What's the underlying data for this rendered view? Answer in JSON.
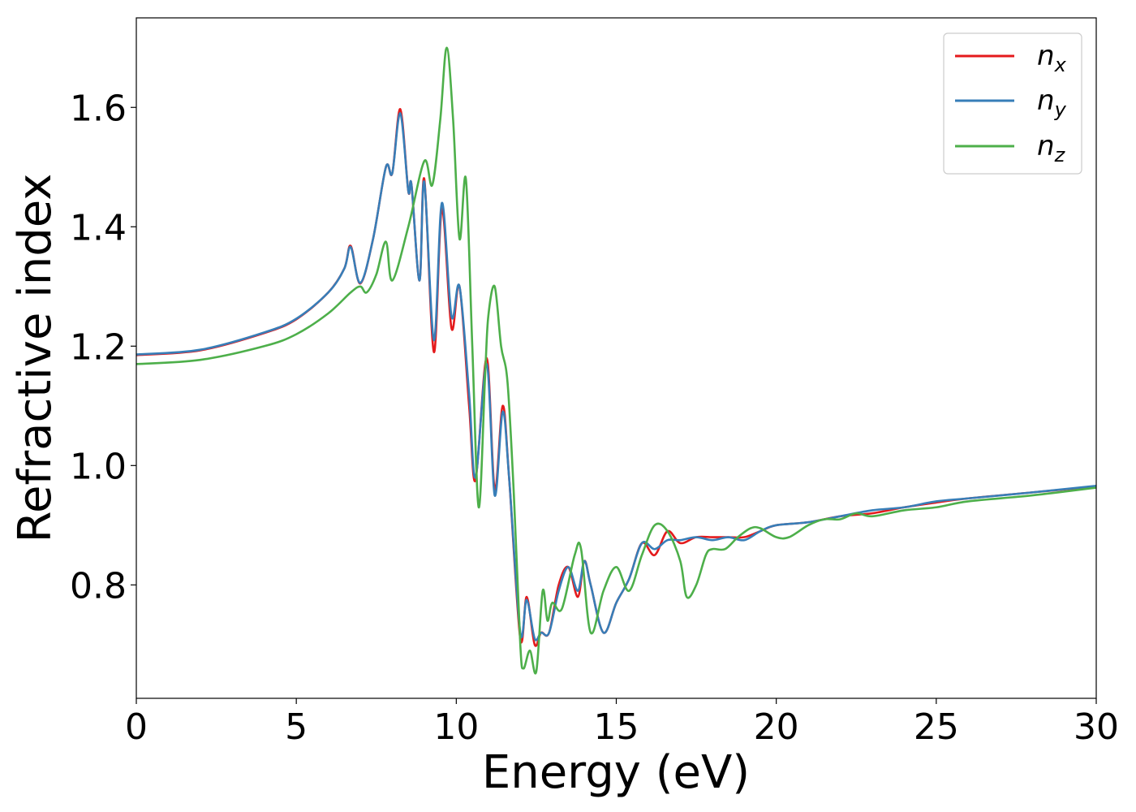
{
  "chart_data": {
    "type": "line",
    "title": "",
    "xlabel": "Energy (eV)",
    "ylabel": "Refractive index",
    "xlim": [
      0,
      30
    ],
    "ylim": [
      0.61,
      1.75
    ],
    "xticks": [
      0,
      5,
      10,
      15,
      20,
      25,
      30
    ],
    "xtick_labels": [
      "0",
      "5",
      "10",
      "15",
      "20",
      "25",
      "30"
    ],
    "yticks": [
      0.8,
      1.0,
      1.2,
      1.4,
      1.6
    ],
    "ytick_labels": [
      "0.8",
      "1.0",
      "1.2",
      "1.4",
      "1.6"
    ],
    "grid": false,
    "legend_position": "top-right",
    "series": [
      {
        "name": "n_x",
        "label_base": "n",
        "label_sub": "x",
        "color": "#e41a1c",
        "points": [
          [
            0,
            1.185
          ],
          [
            2,
            1.193
          ],
          [
            4,
            1.222
          ],
          [
            5,
            1.245
          ],
          [
            6,
            1.29
          ],
          [
            6.5,
            1.33
          ],
          [
            6.7,
            1.368
          ],
          [
            7.0,
            1.305
          ],
          [
            7.4,
            1.38
          ],
          [
            7.8,
            1.5
          ],
          [
            8.0,
            1.49
          ],
          [
            8.25,
            1.597
          ],
          [
            8.5,
            1.46
          ],
          [
            8.6,
            1.47
          ],
          [
            8.85,
            1.31
          ],
          [
            9.0,
            1.48
          ],
          [
            9.3,
            1.19
          ],
          [
            9.55,
            1.43
          ],
          [
            9.85,
            1.23
          ],
          [
            10.1,
            1.3
          ],
          [
            10.4,
            1.1
          ],
          [
            10.6,
            0.975
          ],
          [
            10.95,
            1.18
          ],
          [
            11.2,
            0.96
          ],
          [
            11.45,
            1.1
          ],
          [
            11.65,
            0.98
          ],
          [
            12.0,
            0.71
          ],
          [
            12.2,
            0.78
          ],
          [
            12.45,
            0.7
          ],
          [
            12.65,
            0.72
          ],
          [
            12.9,
            0.72
          ],
          [
            13.2,
            0.8
          ],
          [
            13.5,
            0.83
          ],
          [
            13.8,
            0.78
          ],
          [
            14.0,
            0.84
          ],
          [
            14.2,
            0.8
          ],
          [
            14.6,
            0.72
          ],
          [
            15.0,
            0.77
          ],
          [
            15.4,
            0.81
          ],
          [
            15.8,
            0.87
          ],
          [
            16.2,
            0.85
          ],
          [
            16.6,
            0.89
          ],
          [
            17.0,
            0.87
          ],
          [
            17.5,
            0.88
          ],
          [
            18.0,
            0.88
          ],
          [
            18.5,
            0.88
          ],
          [
            19.0,
            0.88
          ],
          [
            19.5,
            0.89
          ],
          [
            20.0,
            0.9
          ],
          [
            21.0,
            0.905
          ],
          [
            22.0,
            0.915
          ],
          [
            23.0,
            0.92
          ],
          [
            24.0,
            0.93
          ],
          [
            25.0,
            0.938
          ],
          [
            26.0,
            0.945
          ],
          [
            28.0,
            0.955
          ],
          [
            30.0,
            0.965
          ]
        ]
      },
      {
        "name": "n_y",
        "label_base": "n",
        "label_sub": "y",
        "color": "#377eb8",
        "points": [
          [
            0,
            1.186
          ],
          [
            2,
            1.194
          ],
          [
            4,
            1.223
          ],
          [
            5,
            1.246
          ],
          [
            6,
            1.29
          ],
          [
            6.5,
            1.33
          ],
          [
            6.7,
            1.366
          ],
          [
            7.0,
            1.306
          ],
          [
            7.4,
            1.38
          ],
          [
            7.8,
            1.5
          ],
          [
            8.0,
            1.49
          ],
          [
            8.25,
            1.59
          ],
          [
            8.5,
            1.46
          ],
          [
            8.6,
            1.47
          ],
          [
            8.85,
            1.31
          ],
          [
            9.0,
            1.475
          ],
          [
            9.3,
            1.21
          ],
          [
            9.55,
            1.44
          ],
          [
            9.85,
            1.25
          ],
          [
            10.1,
            1.3
          ],
          [
            10.4,
            1.12
          ],
          [
            10.6,
            0.98
          ],
          [
            10.95,
            1.17
          ],
          [
            11.2,
            0.95
          ],
          [
            11.45,
            1.09
          ],
          [
            11.65,
            0.98
          ],
          [
            12.0,
            0.72
          ],
          [
            12.2,
            0.775
          ],
          [
            12.45,
            0.71
          ],
          [
            12.65,
            0.72
          ],
          [
            12.9,
            0.72
          ],
          [
            13.2,
            0.79
          ],
          [
            13.5,
            0.83
          ],
          [
            13.8,
            0.79
          ],
          [
            14.0,
            0.84
          ],
          [
            14.2,
            0.8
          ],
          [
            14.6,
            0.72
          ],
          [
            15.0,
            0.77
          ],
          [
            15.4,
            0.81
          ],
          [
            15.8,
            0.87
          ],
          [
            16.2,
            0.86
          ],
          [
            16.6,
            0.875
          ],
          [
            17.0,
            0.875
          ],
          [
            17.5,
            0.88
          ],
          [
            18.0,
            0.875
          ],
          [
            18.5,
            0.88
          ],
          [
            19.0,
            0.875
          ],
          [
            19.5,
            0.89
          ],
          [
            20.0,
            0.9
          ],
          [
            21.0,
            0.905
          ],
          [
            22.0,
            0.915
          ],
          [
            23.0,
            0.925
          ],
          [
            24.0,
            0.93
          ],
          [
            25.0,
            0.94
          ],
          [
            26.0,
            0.945
          ],
          [
            28.0,
            0.955
          ],
          [
            30.0,
            0.966
          ]
        ]
      },
      {
        "name": "n_z",
        "label_base": "n",
        "label_sub": "z",
        "color": "#4daf4a",
        "points": [
          [
            0,
            1.17
          ],
          [
            2,
            1.177
          ],
          [
            4,
            1.2
          ],
          [
            5,
            1.22
          ],
          [
            6,
            1.255
          ],
          [
            6.7,
            1.29
          ],
          [
            7.0,
            1.3
          ],
          [
            7.2,
            1.29
          ],
          [
            7.5,
            1.32
          ],
          [
            7.8,
            1.375
          ],
          [
            8.0,
            1.31
          ],
          [
            8.5,
            1.4
          ],
          [
            9.0,
            1.51
          ],
          [
            9.25,
            1.47
          ],
          [
            9.5,
            1.58
          ],
          [
            9.7,
            1.7
          ],
          [
            9.9,
            1.58
          ],
          [
            10.1,
            1.38
          ],
          [
            10.3,
            1.48
          ],
          [
            10.5,
            1.2
          ],
          [
            10.7,
            0.93
          ],
          [
            10.9,
            1.15
          ],
          [
            11.0,
            1.25
          ],
          [
            11.2,
            1.3
          ],
          [
            11.4,
            1.2
          ],
          [
            11.6,
            1.14
          ],
          [
            11.8,
            0.95
          ],
          [
            12.0,
            0.7
          ],
          [
            12.1,
            0.66
          ],
          [
            12.3,
            0.69
          ],
          [
            12.5,
            0.655
          ],
          [
            12.7,
            0.79
          ],
          [
            12.85,
            0.74
          ],
          [
            13.0,
            0.77
          ],
          [
            13.3,
            0.76
          ],
          [
            13.7,
            0.85
          ],
          [
            13.9,
            0.86
          ],
          [
            14.2,
            0.72
          ],
          [
            14.6,
            0.79
          ],
          [
            15.0,
            0.83
          ],
          [
            15.4,
            0.79
          ],
          [
            15.8,
            0.85
          ],
          [
            16.2,
            0.9
          ],
          [
            16.6,
            0.89
          ],
          [
            17.0,
            0.84
          ],
          [
            17.2,
            0.78
          ],
          [
            17.5,
            0.8
          ],
          [
            17.8,
            0.85
          ],
          [
            18.0,
            0.86
          ],
          [
            18.4,
            0.86
          ],
          [
            18.8,
            0.88
          ],
          [
            19.2,
            0.895
          ],
          [
            19.5,
            0.895
          ],
          [
            20.0,
            0.88
          ],
          [
            20.4,
            0.88
          ],
          [
            21.0,
            0.9
          ],
          [
            21.5,
            0.91
          ],
          [
            22.0,
            0.91
          ],
          [
            22.5,
            0.92
          ],
          [
            23.0,
            0.915
          ],
          [
            24.0,
            0.925
          ],
          [
            25.0,
            0.93
          ],
          [
            26.0,
            0.94
          ],
          [
            28.0,
            0.95
          ],
          [
            30.0,
            0.963
          ]
        ]
      }
    ]
  }
}
